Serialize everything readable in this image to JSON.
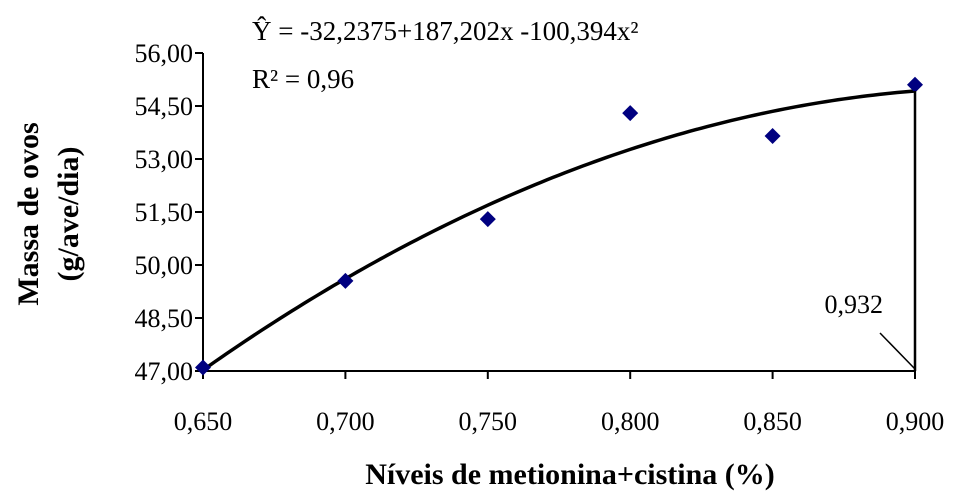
{
  "chart_data": {
    "type": "scatter",
    "title": "",
    "xlabel": "Níveis de metionina+cistina (%)",
    "ylabel_line1": "Massa de ovos",
    "ylabel_line2": "(g/ave/dia)",
    "xlim": [
      0.65,
      0.9
    ],
    "ylim": [
      47.0,
      56.0
    ],
    "x_ticks": [
      "0,650",
      "0,700",
      "0,750",
      "0,800",
      "0,850",
      "0,900"
    ],
    "x_tick_values": [
      0.65,
      0.7,
      0.75,
      0.8,
      0.85,
      0.9
    ],
    "y_ticks": [
      "47,00",
      "48,50",
      "50,00",
      "51,50",
      "53,00",
      "54,50",
      "56,00"
    ],
    "y_tick_values": [
      47.0,
      48.5,
      50.0,
      51.5,
      53.0,
      54.5,
      56.0
    ],
    "grid": false,
    "series": [
      {
        "kind": "points",
        "marker": "diamond",
        "color": "#000080",
        "x": [
          0.65,
          0.7,
          0.75,
          0.8,
          0.85,
          0.9
        ],
        "y": [
          47.1,
          49.55,
          51.3,
          54.3,
          53.65,
          55.1
        ]
      },
      {
        "kind": "fit",
        "color": "#000000",
        "coefficients": [
          -32.2375,
          187.202,
          -100.394
        ]
      }
    ],
    "equation": "Ŷ = -32,2375+187,202x -100,394x²",
    "r2": "R² = 0,96",
    "annotation": {
      "text": "0,932",
      "x": 0.932
    }
  }
}
